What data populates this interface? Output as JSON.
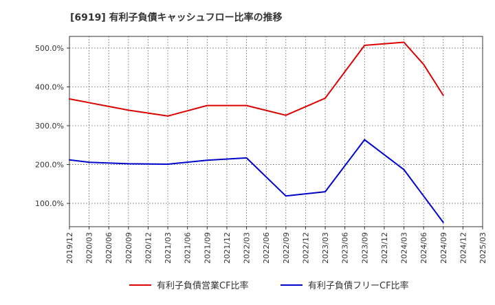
{
  "chart_data": {
    "type": "line",
    "title": "[6919]  有利子負債キャッシュフロー比率の推移",
    "xlabel": "",
    "ylabel": "",
    "ylim": [
      40,
      530
    ],
    "y_ticks": [
      100,
      200,
      300,
      400,
      500
    ],
    "y_tick_labels": [
      "100.0%",
      "200.0%",
      "300.0%",
      "400.0%",
      "500.0%"
    ],
    "x_tick_labels": [
      "2019/12",
      "2020/03",
      "2020/06",
      "2020/09",
      "2020/12",
      "2021/03",
      "2021/06",
      "2021/09",
      "2021/12",
      "2022/03",
      "2022/06",
      "2022/09",
      "2022/12",
      "2023/03",
      "2023/06",
      "2023/09",
      "2023/12",
      "2024/03",
      "2024/06",
      "2024/09",
      "2024/12",
      "2025/03"
    ],
    "grid": true,
    "legend_position": "bottom",
    "series": [
      {
        "name": "有利子負債営業CF比率",
        "color": "#dd0000",
        "points": [
          {
            "x": "2019/12",
            "y": 369
          },
          {
            "x": "2020/09",
            "y": 340
          },
          {
            "x": "2021/03",
            "y": 325
          },
          {
            "x": "2021/09",
            "y": 352
          },
          {
            "x": "2022/03",
            "y": 352
          },
          {
            "x": "2022/09",
            "y": 327
          },
          {
            "x": "2023/03",
            "y": 371
          },
          {
            "x": "2023/09",
            "y": 507
          },
          {
            "x": "2024/03",
            "y": 515
          },
          {
            "x": "2024/06",
            "y": 458
          },
          {
            "x": "2024/09",
            "y": 378
          }
        ]
      },
      {
        "name": "有利子負債フリーCF比率",
        "color": "#0000cc",
        "points": [
          {
            "x": "2019/12",
            "y": 212
          },
          {
            "x": "2020/03",
            "y": 206
          },
          {
            "x": "2020/09",
            "y": 202
          },
          {
            "x": "2021/03",
            "y": 201
          },
          {
            "x": "2021/09",
            "y": 211
          },
          {
            "x": "2022/03",
            "y": 217
          },
          {
            "x": "2022/09",
            "y": 119
          },
          {
            "x": "2023/03",
            "y": 130
          },
          {
            "x": "2023/09",
            "y": 264
          },
          {
            "x": "2024/03",
            "y": 187
          },
          {
            "x": "2024/09",
            "y": 51
          }
        ]
      }
    ]
  }
}
